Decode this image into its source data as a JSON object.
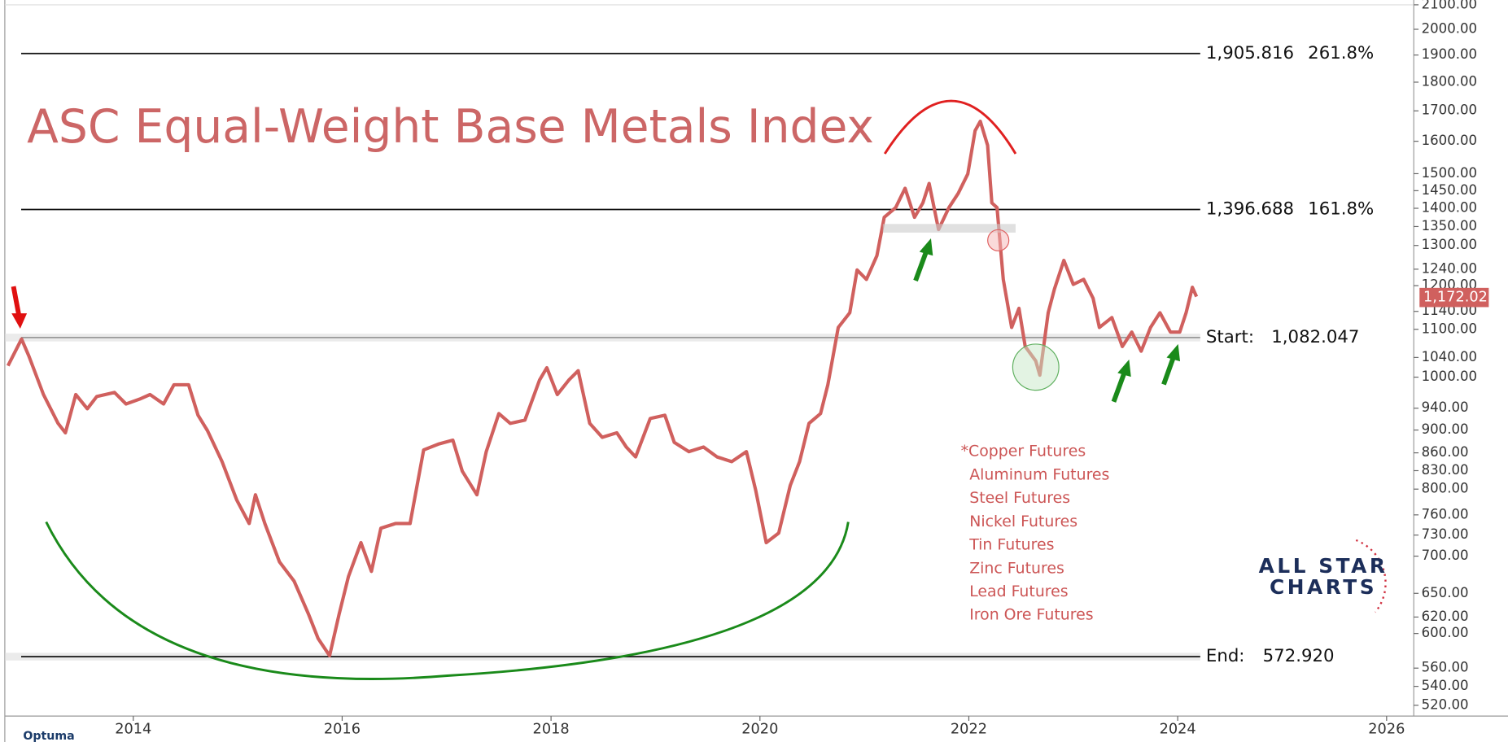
{
  "chart_data": {
    "type": "line",
    "title": "ASC Equal-Weight Base Metals Index",
    "yscale": "log",
    "color": "#d0605e",
    "xlim": [
      2012.77,
      2026.26
    ],
    "ylim": [
      509,
      2100
    ],
    "xticks": [
      2014,
      2016,
      2018,
      2020,
      2022,
      2024,
      2026
    ],
    "yticks": [
      {
        "value": 520,
        "label": "520.00"
      },
      {
        "value": 540,
        "label": "540.00"
      },
      {
        "value": 560,
        "label": "560.00"
      },
      {
        "value": 600,
        "label": "600.00"
      },
      {
        "value": 620,
        "label": "620.00"
      },
      {
        "value": 650,
        "label": "650.00"
      },
      {
        "value": 700,
        "label": "700.00"
      },
      {
        "value": 730,
        "label": "730.00"
      },
      {
        "value": 760,
        "label": "760.00"
      },
      {
        "value": 800,
        "label": "800.00"
      },
      {
        "value": 830,
        "label": "830.00"
      },
      {
        "value": 860,
        "label": "860.00"
      },
      {
        "value": 900,
        "label": "900.00"
      },
      {
        "value": 940,
        "label": "940.00"
      },
      {
        "value": 1000,
        "label": "1000.00"
      },
      {
        "value": 1040,
        "label": "1040.00"
      },
      {
        "value": 1100,
        "label": "1100.00"
      },
      {
        "value": 1140,
        "label": "1140.00"
      },
      {
        "value": 1200,
        "label": "1200.00"
      },
      {
        "value": 1240,
        "label": "1240.00"
      },
      {
        "value": 1300,
        "label": "1300.00"
      },
      {
        "value": 1350,
        "label": "1350.00"
      },
      {
        "value": 1400,
        "label": "1400.00"
      },
      {
        "value": 1450,
        "label": "1450.00"
      },
      {
        "value": 1500,
        "label": "1500.00"
      },
      {
        "value": 1600,
        "label": "1600.00"
      },
      {
        "value": 1700,
        "label": "1700.00"
      },
      {
        "value": 1800,
        "label": "1800.00"
      },
      {
        "value": 1900,
        "label": "1900.00"
      },
      {
        "value": 2000,
        "label": "2000.00"
      },
      {
        "value": 2100,
        "label": "2100.00"
      }
    ],
    "x": [
      2012.8,
      2012.93,
      2013.0,
      2013.14,
      2013.28,
      2013.35,
      2013.45,
      2013.56,
      2013.65,
      2013.82,
      2013.93,
      2014.06,
      2014.16,
      2014.29,
      2014.39,
      2014.53,
      2014.62,
      2014.71,
      2014.85,
      2014.99,
      2015.11,
      2015.17,
      2015.26,
      2015.4,
      2015.54,
      2015.68,
      2015.77,
      2015.88,
      2015.97,
      2016.06,
      2016.18,
      2016.28,
      2016.37,
      2016.51,
      2016.65,
      2016.78,
      2016.92,
      2017.06,
      2017.15,
      2017.29,
      2017.38,
      2017.5,
      2017.61,
      2017.75,
      2017.89,
      2017.96,
      2018.06,
      2018.17,
      2018.26,
      2018.37,
      2018.49,
      2018.63,
      2018.72,
      2018.81,
      2018.95,
      2019.09,
      2019.18,
      2019.32,
      2019.46,
      2019.59,
      2019.73,
      2019.87,
      2019.96,
      2020.06,
      2020.18,
      2020.29,
      2020.38,
      2020.47,
      2020.58,
      2020.65,
      2020.75,
      2020.86,
      2020.93,
      2021.02,
      2021.12,
      2021.19,
      2021.3,
      2021.39,
      2021.48,
      2021.56,
      2021.62,
      2021.71,
      2021.81,
      2021.9,
      2021.99,
      2022.06,
      2022.11,
      2022.18,
      2022.22,
      2022.27,
      2022.33,
      2022.41,
      2022.48,
      2022.54,
      2022.64,
      2022.68,
      2022.76,
      2022.82,
      2022.91,
      2023.0,
      2023.1,
      2023.19,
      2023.25,
      2023.37,
      2023.47,
      2023.56,
      2023.65,
      2023.74,
      2023.83,
      2023.93,
      2024.02,
      2024.08,
      2024.14,
      2024.18
    ],
    "values": [
      1023,
      1079,
      1043,
      966,
      912,
      895,
      966,
      939,
      962,
      970,
      948,
      957,
      966,
      948,
      985,
      985,
      927,
      899,
      845,
      783,
      747,
      791,
      747,
      692,
      666,
      623,
      594,
      574,
      623,
      672,
      719,
      679,
      740,
      747,
      747,
      865,
      875,
      882,
      829,
      791,
      862,
      930,
      912,
      918,
      994,
      1019,
      966,
      994,
      1013,
      912,
      887,
      895,
      870,
      853,
      921,
      927,
      878,
      862,
      870,
      853,
      845,
      862,
      798,
      719,
      733,
      806,
      845,
      912,
      930,
      985,
      1104,
      1137,
      1238,
      1215,
      1274,
      1375,
      1402,
      1457,
      1375,
      1415,
      1471,
      1342,
      1402,
      1443,
      1499,
      1634,
      1665,
      1587,
      1415,
      1402,
      1215,
      1104,
      1147,
      1063,
      1033,
      1004,
      1137,
      1192,
      1262,
      1203,
      1215,
      1170,
      1104,
      1126,
      1063,
      1094,
      1053,
      1104,
      1137,
      1094,
      1094,
      1137,
      1196,
      1174
    ],
    "last_value": {
      "value": 1172.02,
      "label": "1,172.02"
    },
    "levels": [
      {
        "value": 1905.816,
        "label": "1,905.816",
        "note": "261.8%"
      },
      {
        "value": 1396.688,
        "label": "1,396.688",
        "note": "161.8%"
      },
      {
        "name": "Start:",
        "value": 1082.047,
        "label": "1,082.047"
      },
      {
        "name": "End:",
        "value": 572.92,
        "label": "572.920"
      }
    ],
    "components": [
      "*Copper Futures",
      "Aluminum Futures",
      "Steel Futures",
      "Nickel Futures",
      "Tin Futures",
      "Zinc Futures",
      "Lead Futures",
      "Iron Ore Futures"
    ],
    "logo": [
      "ALL STAR",
      "CHARTS"
    ],
    "platform": "Optuma"
  }
}
